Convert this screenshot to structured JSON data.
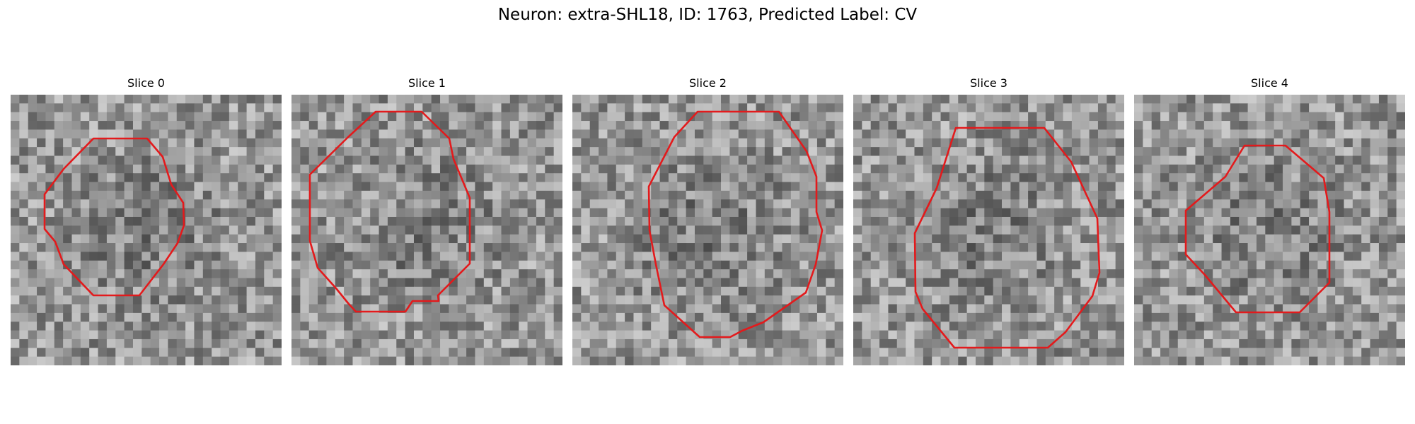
{
  "figure": {
    "title": "Neuron: extra-SHL18, ID: 1763, Predicted Label: CV"
  },
  "panels": [
    {
      "title": "Slice 0"
    },
    {
      "title": "Slice 1"
    },
    {
      "title": "Slice 2"
    },
    {
      "title": "Slice 3"
    },
    {
      "title": "Slice 4"
    }
  ],
  "colors": {
    "contour": "#e31a1c",
    "background": "#ffffff"
  }
}
